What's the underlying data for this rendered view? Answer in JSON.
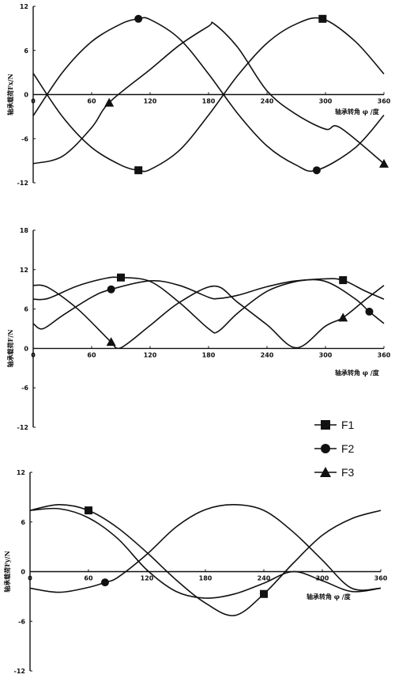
{
  "chart_data": [
    {
      "type": "line",
      "xlabel": "轴承转角 φ /度",
      "ylabel": "轴承载荷Fx/N",
      "xlim": [
        0,
        360
      ],
      "ylim": [
        -12,
        12
      ],
      "xticks": [
        "0",
        "60",
        "120",
        "180",
        "240",
        "300",
        "360"
      ],
      "yticks": [
        "12",
        "6",
        "0",
        "-6",
        "-12"
      ],
      "series": [
        {
          "name": "F1",
          "x": [
            0,
            30,
            60,
            90,
            108,
            120,
            150,
            180,
            210,
            240,
            270,
            297,
            330,
            360
          ],
          "y": [
            2.9,
            -3.0,
            -7.2,
            -9.6,
            -10.3,
            -10.2,
            -7.6,
            -2.8,
            2.6,
            7.0,
            9.6,
            10.3,
            7.3,
            2.8
          ]
        },
        {
          "name": "F2",
          "x": [
            0,
            30,
            60,
            90,
            108,
            120,
            150,
            180,
            210,
            240,
            270,
            291,
            330,
            360
          ],
          "y": [
            -2.9,
            3.0,
            7.2,
            9.6,
            10.3,
            10.2,
            7.6,
            2.8,
            -2.6,
            -7.0,
            -9.6,
            -10.3,
            -7.3,
            -2.8
          ]
        },
        {
          "name": "F3",
          "x": [
            0,
            30,
            60,
            78,
            120,
            150,
            180,
            186,
            210,
            240,
            270,
            300,
            315,
            360
          ],
          "y": [
            -9.4,
            -8.4,
            -4.5,
            -1.1,
            3.4,
            6.7,
            9.3,
            9.6,
            6.4,
            0.5,
            -2.7,
            -4.7,
            -4.5,
            -9.4
          ]
        }
      ]
    },
    {
      "type": "line",
      "xlabel": "轴承转角 φ /度",
      "ylabel": "轴承载荷F/N",
      "xlim": [
        0,
        360
      ],
      "ylim": [
        -12,
        18
      ],
      "xticks": [
        "0",
        "60",
        "120",
        "180",
        "240",
        "300",
        "360"
      ],
      "yticks": [
        "18",
        "12",
        "6",
        "0",
        "-6",
        "-12"
      ],
      "series": [
        {
          "name": "F1",
          "x": [
            0,
            15,
            45,
            75,
            90,
            120,
            150,
            180,
            190,
            210,
            240,
            270,
            300,
            318,
            340,
            360
          ],
          "y": [
            7.5,
            7.6,
            9.5,
            10.7,
            10.8,
            10.2,
            7.0,
            3.0,
            2.6,
            5.4,
            8.7,
            10.2,
            10.6,
            10.4,
            8.8,
            7.5
          ]
        },
        {
          "name": "F2",
          "x": [
            0,
            10,
            30,
            60,
            80,
            120,
            150,
            180,
            190,
            210,
            240,
            270,
            300,
            330,
            345,
            360
          ],
          "y": [
            3.8,
            3.0,
            5.0,
            7.8,
            9.0,
            10.3,
            9.6,
            7.8,
            7.6,
            8.1,
            9.4,
            10.3,
            10.2,
            7.6,
            5.6,
            3.8
          ]
        },
        {
          "name": "F3",
          "x": [
            0,
            15,
            45,
            75,
            80,
            90,
            120,
            150,
            186,
            210,
            240,
            270,
            300,
            318,
            340,
            360
          ],
          "y": [
            9.6,
            9.3,
            6.1,
            1.7,
            1.0,
            0.1,
            3.5,
            7.0,
            9.5,
            7.0,
            3.6,
            0.1,
            3.4,
            4.7,
            7.3,
            9.6
          ]
        }
      ]
    },
    {
      "type": "line",
      "xlabel": "轴承转角 φ /度",
      "ylabel": "轴承载荷Fy/N",
      "xlim": [
        0,
        360
      ],
      "ylim": [
        -12,
        12
      ],
      "xticks": [
        "0",
        "60",
        "120",
        "180",
        "240",
        "300",
        "360"
      ],
      "yticks": [
        "12",
        "6",
        "0",
        "-6",
        "-12"
      ],
      "series": [
        {
          "name": "F1",
          "x": [
            0,
            30,
            60,
            90,
            120,
            150,
            180,
            210,
            240,
            270,
            300,
            330,
            360
          ],
          "y": [
            7.4,
            8.1,
            7.4,
            5.3,
            2.3,
            -1.0,
            -3.8,
            -5.3,
            -2.7,
            1.0,
            4.4,
            6.4,
            7.4
          ]
        },
        {
          "name": "F2",
          "x": [
            0,
            30,
            60,
            77,
            90,
            120,
            150,
            180,
            210,
            240,
            270,
            300,
            330,
            360
          ],
          "y": [
            -2.0,
            -2.5,
            -1.9,
            -1.3,
            -0.7,
            2.1,
            5.4,
            7.5,
            8.1,
            7.4,
            4.8,
            1.4,
            -2.0,
            -2.0
          ]
        },
        {
          "name": "F3",
          "x": [
            0,
            30,
            60,
            90,
            120,
            150,
            180,
            210,
            240,
            270,
            300,
            330,
            360
          ],
          "y": [
            7.4,
            7.6,
            6.5,
            4.0,
            0.2,
            -2.4,
            -3.2,
            -2.7,
            -1.4,
            0.0,
            -1.1,
            -2.4,
            -2.0
          ]
        }
      ]
    }
  ],
  "legend": {
    "placement": "right, between panels 2 and 3",
    "entries": [
      {
        "label": "F1",
        "marker": "square"
      },
      {
        "label": "F2",
        "marker": "circle"
      },
      {
        "label": "F3",
        "marker": "triangle"
      }
    ]
  },
  "colors": {
    "ink": "#111111",
    "background": "#ffffff"
  }
}
